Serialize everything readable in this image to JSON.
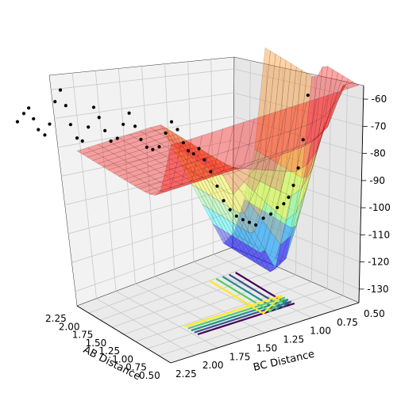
{
  "chart_data": {
    "type": "surface3d",
    "title": "",
    "xlabel": "AB Distance",
    "ylabel": "BC Distance",
    "zlabel": "",
    "x_ticks": [
      "2.25",
      "2.00",
      "1.75",
      "1.50",
      "1.25",
      "1.00",
      "0.75",
      "0.50"
    ],
    "y_ticks": [
      "2.25",
      "2.00",
      "1.75",
      "1.50",
      "1.25",
      "1.00",
      "0.75",
      "0.50"
    ],
    "z_ticks": [
      "-60",
      "-70",
      "-80",
      "-90",
      "-100",
      "-110",
      "-120",
      "-130"
    ],
    "z_values": [
      -60,
      -70,
      -80,
      -90,
      -100,
      -110,
      -120,
      -130
    ],
    "xlim": [
      0.5,
      2.25
    ],
    "ylim": [
      0.5,
      2.25
    ],
    "zlim": [
      -135,
      -55
    ],
    "grid": true,
    "surface_colormap": "jet",
    "surface_colors": [
      "#0000ff",
      "#00ffff",
      "#80ff80",
      "#ffff00",
      "#ff8000",
      "#ff0000"
    ],
    "plateau_energy": -78,
    "contour_colors": [
      "#440154",
      "#3b528b",
      "#21908d",
      "#5dc963",
      "#fde725"
    ],
    "trajectory_color": "#000000",
    "trajectory_points": [
      [
        2.62,
        2.62,
        -67
      ],
      [
        2.58,
        2.58,
        -64
      ],
      [
        2.55,
        2.55,
        -62
      ],
      [
        2.52,
        2.52,
        -66
      ],
      [
        2.49,
        2.49,
        -70
      ],
      [
        2.45,
        2.45,
        -72
      ],
      [
        2.42,
        2.42,
        -68
      ],
      [
        2.4,
        2.38,
        -60
      ],
      [
        2.38,
        2.34,
        -56
      ],
      [
        2.36,
        2.3,
        -62
      ],
      [
        2.33,
        2.27,
        -69
      ],
      [
        2.29,
        2.23,
        -74
      ],
      [
        2.25,
        2.2,
        -75
      ],
      [
        2.22,
        2.16,
        -70
      ],
      [
        2.2,
        2.12,
        -63
      ],
      [
        2.18,
        2.08,
        -67
      ],
      [
        2.15,
        2.04,
        -72
      ],
      [
        2.12,
        2.0,
        -76
      ],
      [
        2.08,
        1.96,
        -75
      ],
      [
        2.05,
        1.92,
        -70
      ],
      [
        2.02,
        1.88,
        -66
      ],
      [
        1.99,
        1.84,
        -71
      ],
      [
        1.96,
        1.8,
        -76
      ],
      [
        1.93,
        1.76,
        -79
      ],
      [
        1.9,
        1.72,
        -80
      ],
      [
        1.86,
        1.68,
        -79
      ],
      [
        1.82,
        1.64,
        -74
      ],
      [
        1.79,
        1.6,
        -70
      ],
      [
        1.76,
        1.56,
        -73
      ],
      [
        1.73,
        1.52,
        -78
      ],
      [
        1.7,
        1.49,
        -81
      ],
      [
        1.66,
        1.46,
        -82
      ],
      [
        1.62,
        1.43,
        -80
      ],
      [
        1.58,
        1.4,
        -84
      ],
      [
        1.52,
        1.37,
        -88
      ],
      [
        1.46,
        1.34,
        -93
      ],
      [
        1.4,
        1.31,
        -98
      ],
      [
        1.34,
        1.28,
        -101
      ],
      [
        1.28,
        1.25,
        -103
      ],
      [
        1.22,
        1.22,
        -104
      ],
      [
        1.18,
        1.18,
        -105
      ],
      [
        1.14,
        1.14,
        -106
      ],
      [
        1.12,
        1.08,
        -104
      ],
      [
        1.1,
        1.02,
        -103
      ],
      [
        1.08,
        0.97,
        -101
      ],
      [
        1.06,
        0.92,
        -100
      ],
      [
        1.05,
        0.88,
        -98
      ],
      [
        1.04,
        0.84,
        -94
      ],
      [
        1.03,
        0.8,
        -88
      ],
      [
        1.02,
        0.76,
        -78
      ],
      [
        1.01,
        0.72,
        -62
      ]
    ],
    "inner_saddle_line": [
      [
        1.95,
        1.35,
        -83
      ],
      [
        1.75,
        1.32,
        -86
      ],
      [
        1.55,
        1.3,
        -91
      ],
      [
        1.4,
        1.28,
        -97
      ],
      [
        1.28,
        1.22,
        -102
      ],
      [
        1.2,
        1.1,
        -104
      ],
      [
        1.12,
        1.02,
        -104
      ]
    ],
    "lower_valley_points": [
      [
        1.8,
        0.98,
        -112
      ],
      [
        1.65,
        0.96,
        -116
      ],
      [
        1.45,
        0.95,
        -118
      ],
      [
        1.3,
        0.95,
        -119
      ],
      [
        1.15,
        0.96,
        -117
      ]
    ]
  }
}
